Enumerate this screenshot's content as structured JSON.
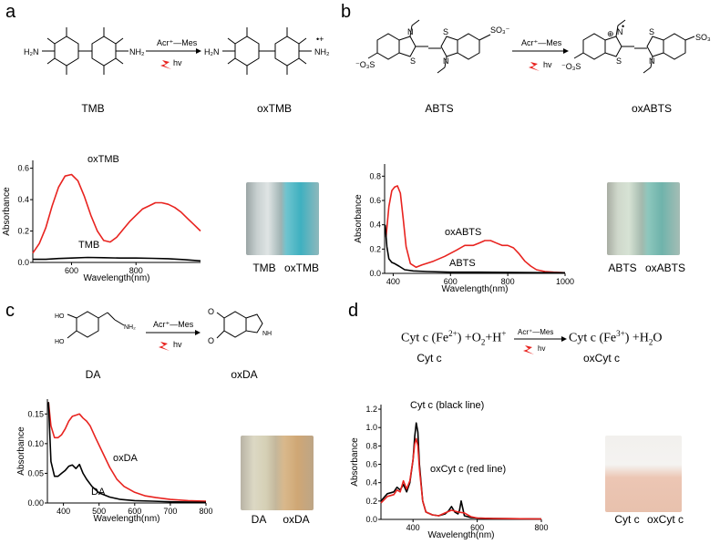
{
  "panels": {
    "a": {
      "letter": "a",
      "reactant": "TMB",
      "product": "oxTMB",
      "reagent": "Acr⁺—Mes",
      "condition": "hv",
      "chem": {
        "nh2": "NH₂",
        "h2n": "H₂N",
        "nh2plus": "NH₂",
        "radical_plus": "•+"
      },
      "photo_labels": [
        "TMB",
        "oxTMB"
      ],
      "chart_data": {
        "type": "line",
        "ylabel": "Absorbance",
        "xlabel": "Wavelength(nm)",
        "xlim": [
          480,
          1000
        ],
        "ylim": [
          0,
          0.65
        ],
        "xticks": [
          600,
          800
        ],
        "yticks": [
          0.0,
          0.2,
          0.4,
          0.6
        ],
        "ytick_labels": [
          "0.0",
          "0.2",
          "0.4",
          "0.6"
        ],
        "series": [
          {
            "name": "oxTMB",
            "color": "#e8231f",
            "x": [
              480,
              500,
              520,
              540,
              560,
              580,
              600,
              620,
              640,
              660,
              680,
              700,
              720,
              740,
              760,
              780,
              800,
              820,
              840,
              860,
              880,
              900,
              920,
              940,
              960,
              980,
              1000
            ],
            "y": [
              0.06,
              0.12,
              0.22,
              0.36,
              0.48,
              0.55,
              0.56,
              0.52,
              0.42,
              0.3,
              0.2,
              0.14,
              0.13,
              0.16,
              0.21,
              0.26,
              0.3,
              0.34,
              0.36,
              0.38,
              0.38,
              0.37,
              0.35,
              0.32,
              0.28,
              0.24,
              0.2
            ]
          },
          {
            "name": "TMB",
            "color": "#000000",
            "x": [
              480,
              520,
              560,
              600,
              650,
              700,
              750,
              800,
              850,
              900,
              950,
              1000
            ],
            "y": [
              0.02,
              0.02,
              0.025,
              0.028,
              0.032,
              0.03,
              0.028,
              0.028,
              0.026,
              0.024,
              0.018,
              0.01
            ]
          }
        ],
        "annotations": [
          "oxTMB",
          "TMB"
        ]
      }
    },
    "b": {
      "letter": "b",
      "reactant": "ABTS",
      "product": "oxABTS",
      "reagent": "Acr⁺—Mes",
      "condition": "hv",
      "chem": {
        "so3": "SO₃⁻",
        "o3s": "⁻O₃S",
        "so3_trunc": "SO₃",
        "n": "N",
        "s": "S",
        "plus": "⊕",
        "radical": "•"
      },
      "photo_labels": [
        "ABTS",
        "oxABTS"
      ],
      "chart_data": {
        "type": "line",
        "ylabel": "Absorbance",
        "xlabel": "Wavelength(nm)",
        "xlim": [
          370,
          1000
        ],
        "ylim": [
          0,
          0.9
        ],
        "xticks": [
          400,
          600,
          800,
          1000
        ],
        "yticks": [
          0.0,
          0.2,
          0.4,
          0.6,
          0.8
        ],
        "ytick_labels": [
          "0.0",
          "0.2",
          "0.4",
          "0.6",
          "0.8"
        ],
        "series": [
          {
            "name": "oxABTS",
            "color": "#e8231f",
            "x": [
              375,
              385,
              395,
              405,
              415,
              425,
              435,
              445,
              460,
              480,
              500,
              540,
              580,
              620,
              650,
              680,
              700,
              720,
              740,
              760,
              780,
              800,
              820,
              840,
              860,
              880,
              900,
              930,
              960,
              1000
            ],
            "y": [
              0.3,
              0.55,
              0.68,
              0.71,
              0.72,
              0.66,
              0.45,
              0.22,
              0.08,
              0.05,
              0.07,
              0.1,
              0.14,
              0.19,
              0.23,
              0.23,
              0.25,
              0.27,
              0.27,
              0.25,
              0.23,
              0.23,
              0.21,
              0.16,
              0.1,
              0.06,
              0.03,
              0.015,
              0.01,
              0.005
            ]
          },
          {
            "name": "ABTS",
            "color": "#000000",
            "x": [
              372,
              378,
              385,
              395,
              405,
              420,
              440,
              470,
              520,
              600,
              700,
              800,
              900,
              1000
            ],
            "y": [
              0.4,
              0.22,
              0.12,
              0.09,
              0.08,
              0.06,
              0.03,
              0.02,
              0.015,
              0.01,
              0.01,
              0.008,
              0.006,
              0.005
            ]
          }
        ],
        "annotations": [
          "oxABTS",
          "ABTS"
        ]
      }
    },
    "c": {
      "letter": "c",
      "reactant": "DA",
      "product": "oxDA",
      "reagent": "Acr⁺—Mes",
      "condition": "hv",
      "chem": {
        "ho": "HO",
        "nh2": "NH₂",
        "nh": "NH",
        "o": "O"
      },
      "photo_labels": [
        "DA",
        "oxDA"
      ],
      "chart_data": {
        "type": "line",
        "ylabel": "Absorbance",
        "xlabel": "Wavelength(nm)",
        "xlim": [
          355,
          800
        ],
        "ylim": [
          0,
          0.175
        ],
        "xticks": [
          400,
          500,
          600,
          700,
          800
        ],
        "yticks": [
          0.0,
          0.05,
          0.1,
          0.15
        ],
        "ytick_labels": [
          "0.00",
          "0.05",
          "0.10",
          "0.15"
        ],
        "series": [
          {
            "name": "oxDA",
            "color": "#e8231f",
            "x": [
              358,
              365,
              375,
              385,
              395,
              405,
              415,
              425,
              435,
              445,
              455,
              465,
              475,
              490,
              510,
              530,
              550,
              570,
              600,
              630,
              660,
              700,
              750,
              800
            ],
            "y": [
              0.17,
              0.13,
              0.11,
              0.11,
              0.115,
              0.125,
              0.138,
              0.146,
              0.148,
              0.15,
              0.143,
              0.138,
              0.13,
              0.11,
              0.085,
              0.06,
              0.04,
              0.028,
              0.018,
              0.012,
              0.009,
              0.006,
              0.004,
              0.003
            ]
          },
          {
            "name": "DA",
            "color": "#000000",
            "x": [
              358,
              365,
              375,
              385,
              395,
              405,
              415,
              425,
              435,
              445,
              455,
              465,
              480,
              500,
              530,
              560,
              600,
              650,
              700,
              800
            ],
            "y": [
              0.17,
              0.07,
              0.045,
              0.045,
              0.05,
              0.055,
              0.062,
              0.064,
              0.058,
              0.065,
              0.05,
              0.04,
              0.028,
              0.017,
              0.01,
              0.006,
              0.004,
              0.003,
              0.002,
              0.001
            ]
          }
        ],
        "annotations": [
          "oxDA",
          "DA"
        ]
      }
    },
    "d": {
      "letter": "d",
      "eq_left": "Cyt c (Fe",
      "eq_left_sup": "2+",
      "eq_mid": ") +O",
      "eq_o2_sub": "2",
      "eq_h": "+H",
      "eq_h_sup": "+",
      "eq_right": "Cyt c (Fe",
      "eq_right_sup": "3+",
      "eq_right2": ") +H",
      "eq_h2o_sub": "2",
      "eq_o": "O",
      "reactant": "Cyt c",
      "product": "oxCyt c",
      "reagent": "Acr⁺—Mes",
      "condition": "hv",
      "photo_labels": [
        "Cyt c",
        "oxCyt c"
      ],
      "chart_data": {
        "type": "line",
        "ylabel": "Absorbance",
        "xlabel": "Wavelength(nm)",
        "xlim": [
          300,
          800
        ],
        "ylim": [
          0,
          1.25
        ],
        "xticks": [
          400,
          600,
          800
        ],
        "yticks": [
          0.0,
          0.2,
          0.4,
          0.6,
          0.8,
          1.0,
          1.2
        ],
        "ytick_labels": [
          "0.0",
          "0.2",
          "0.4",
          "0.6",
          "0.8",
          "1.0",
          "1.2"
        ],
        "series": [
          {
            "name": "Cyt c (black line)",
            "color": "#000000",
            "x": [
              300,
              320,
              340,
              350,
              360,
              370,
              380,
              390,
              400,
              405,
              410,
              415,
              420,
              430,
              440,
              460,
              480,
              500,
              510,
              520,
              530,
              540,
              545,
              550,
              555,
              560,
              580,
              600,
              650,
              700,
              800
            ],
            "y": [
              0.2,
              0.28,
              0.3,
              0.35,
              0.32,
              0.38,
              0.3,
              0.4,
              0.65,
              0.9,
              1.05,
              0.95,
              0.6,
              0.2,
              0.08,
              0.05,
              0.04,
              0.06,
              0.09,
              0.14,
              0.08,
              0.06,
              0.1,
              0.2,
              0.12,
              0.04,
              0.02,
              0.015,
              0.01,
              0.008,
              0.005
            ]
          },
          {
            "name": "oxCyt c (red line)",
            "color": "#e8231f",
            "x": [
              300,
              320,
              340,
              350,
              360,
              370,
              380,
              390,
              400,
              405,
              410,
              415,
              420,
              430,
              440,
              460,
              480,
              500,
              520,
              530,
              540,
              560,
              580,
              600,
              650,
              700,
              800
            ],
            "y": [
              0.18,
              0.25,
              0.27,
              0.32,
              0.3,
              0.42,
              0.33,
              0.42,
              0.65,
              0.82,
              0.88,
              0.8,
              0.55,
              0.2,
              0.08,
              0.05,
              0.04,
              0.07,
              0.1,
              0.09,
              0.08,
              0.07,
              0.03,
              0.015,
              0.01,
              0.008,
              0.005
            ]
          }
        ],
        "annotations": [
          "Cyt c (black line)",
          "oxCyt c (red line)"
        ]
      }
    }
  }
}
